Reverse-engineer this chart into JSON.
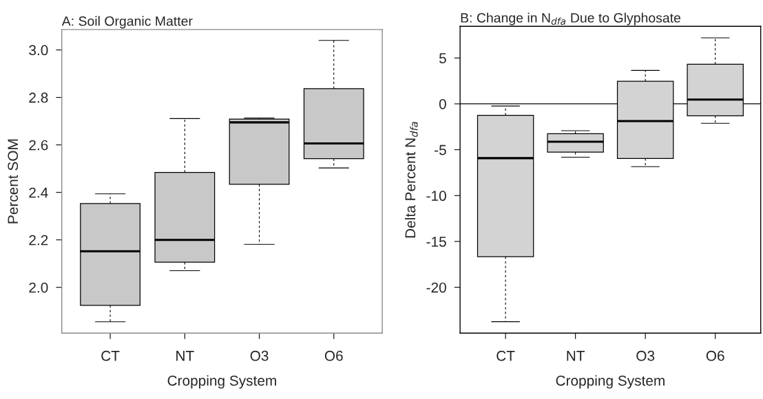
{
  "chart_data": [
    {
      "type": "box",
      "title": "A: Soil Organic Matter",
      "xlabel": "Cropping System",
      "ylabel": "Percent SOM",
      "categories": [
        "CT",
        "NT",
        "O3",
        "O6"
      ],
      "series": [
        {
          "color": "#c8c8c8",
          "boxes": [
            {
              "low": 1.855,
              "q1": 1.924,
              "median": 2.152,
              "q3": 2.353,
              "high": 2.394
            },
            {
              "low": 2.07,
              "q1": 2.106,
              "median": 2.2,
              "q3": 2.484,
              "high": 2.711
            },
            {
              "low": 2.181,
              "q1": 2.434,
              "median": 2.695,
              "q3": 2.709,
              "high": 2.713
            },
            {
              "low": 2.503,
              "q1": 2.542,
              "median": 2.606,
              "q3": 2.837,
              "high": 3.04
            }
          ]
        }
      ],
      "ylim": [
        1.807,
        3.086
      ],
      "yticks": [
        {
          "value": 2.0,
          "label": "2.0"
        },
        2.2,
        2.4,
        2.6,
        2.8,
        {
          "value": 3.0,
          "label": "3.0"
        }
      ],
      "grid": false,
      "legend": false
    },
    {
      "type": "box",
      "title": "B: Change in N$_{dfa}$ Due to Glyphosate",
      "xlabel": "Cropping System",
      "ylabel": "Delta Percent N$_{dfa}$",
      "categories": [
        "CT",
        "NT",
        "O3",
        "O6"
      ],
      "series": [
        {
          "color": "#d3d3d3",
          "boxes": [
            {
              "low": -23.75,
              "q1": -16.66,
              "median": -5.92,
              "q3": -1.25,
              "high": -0.24
            },
            {
              "low": -5.82,
              "q1": -5.27,
              "median": -4.13,
              "q3": -3.26,
              "high": -2.93
            },
            {
              "low": -6.85,
              "q1": -5.95,
              "median": -1.88,
              "q3": 2.47,
              "high": 3.64
            },
            {
              "low": -2.12,
              "q1": -1.3,
              "median": 0.46,
              "q3": 4.32,
              "high": 7.2
            }
          ]
        }
      ],
      "ylim": [
        -25.0,
        8.45
      ],
      "yticks": [
        -20,
        -15,
        -10,
        -5,
        0,
        5
      ],
      "ref_lines": [
        {
          "axis": "y",
          "value": 0,
          "color": "#000000"
        }
      ],
      "grid": false,
      "legend": false
    }
  ]
}
